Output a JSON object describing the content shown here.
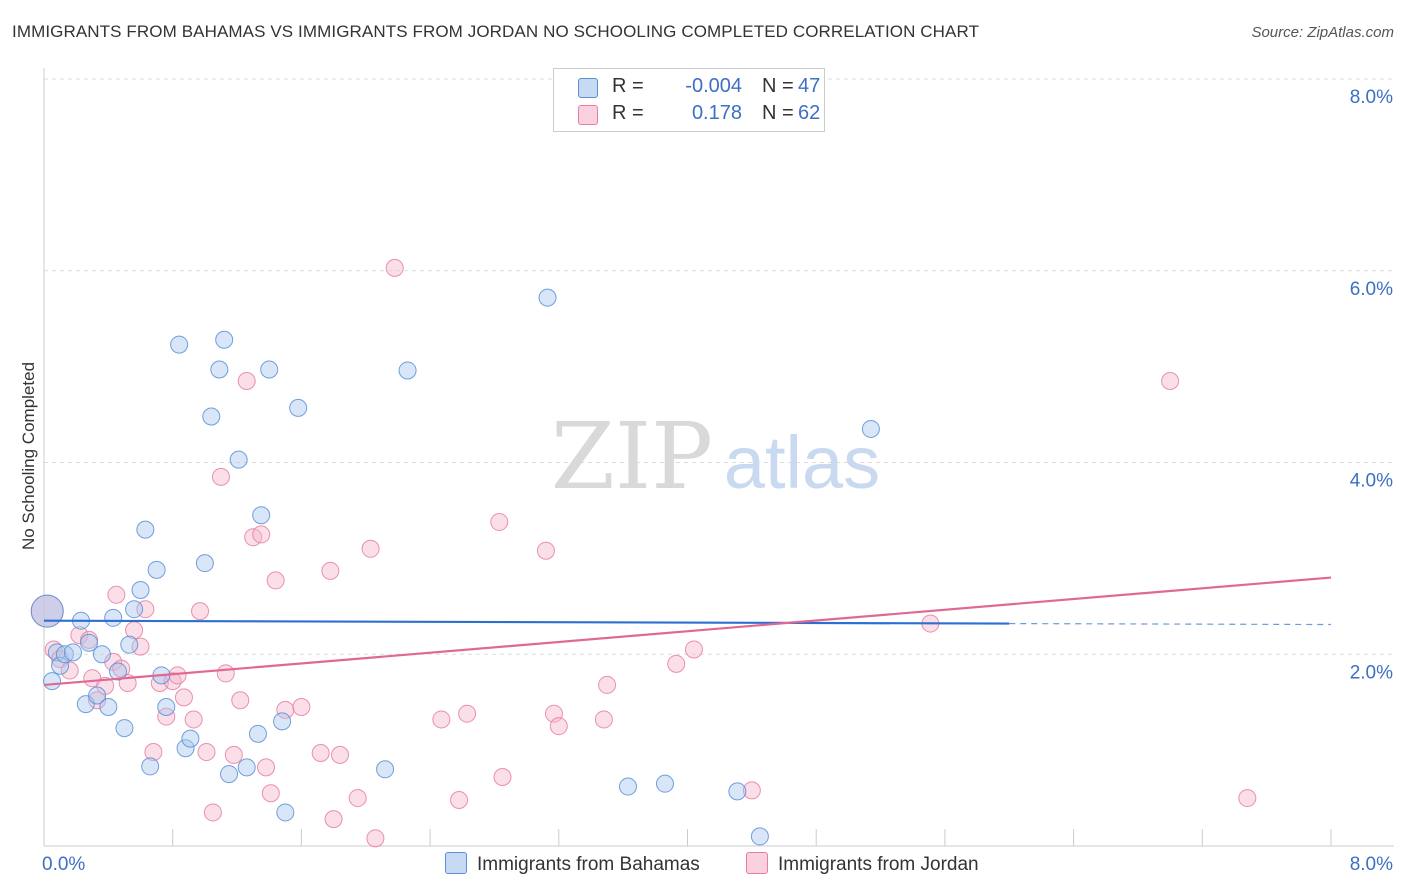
{
  "title": "IMMIGRANTS FROM BAHAMAS VS IMMIGRANTS FROM JORDAN NO SCHOOLING COMPLETED CORRELATION CHART",
  "source": "Source: ZipAtlas.com",
  "watermark": {
    "zip": "ZIP",
    "atlas": "atlas"
  },
  "legend": {
    "rows": [
      {
        "r_label": "R =",
        "r_value": "-0.004",
        "n_label": "N =",
        "n_value": "47"
      },
      {
        "r_label": "R =",
        "r_value": "0.178",
        "n_label": "N =",
        "n_value": "62"
      }
    ]
  },
  "chart_data": {
    "type": "scatter",
    "ylabel": "No Schooling Completed",
    "xlim": [
      0,
      8
    ],
    "ylim": [
      0,
      8
    ],
    "x_tick_labels": [
      "0.0%",
      "8.0%"
    ],
    "y_tick_labels": [
      "2.0%",
      "4.0%",
      "6.0%",
      "8.0%"
    ],
    "y_tick_values": [
      2,
      4,
      6,
      8
    ],
    "grid": true,
    "legend_position": "bottom-center",
    "colors": {
      "bahamas_fill": "#a9c7ee",
      "bahamas_stroke": "#5b8fd6",
      "bahamas_line": "#2c6fd1",
      "jordan_fill": "#f5b8cb",
      "jordan_stroke": "#e87ea1",
      "jordan_line": "#e06893"
    },
    "series": [
      {
        "name": "Immigrants from Bahamas",
        "trend": {
          "x1": 0.0,
          "y1": 2.35,
          "x2": 6.0,
          "y2": 2.32,
          "dash_to": 8.0
        },
        "points": [
          [
            0.02,
            2.45
          ],
          [
            0.05,
            1.72
          ],
          [
            0.08,
            2.02
          ],
          [
            0.1,
            1.88
          ],
          [
            0.13,
            2.0
          ],
          [
            0.18,
            2.02
          ],
          [
            0.23,
            2.35
          ],
          [
            0.26,
            1.48
          ],
          [
            0.28,
            2.12
          ],
          [
            0.33,
            1.57
          ],
          [
            0.36,
            2.0
          ],
          [
            0.4,
            1.45
          ],
          [
            0.43,
            2.38
          ],
          [
            0.46,
            1.82
          ],
          [
            0.5,
            1.23
          ],
          [
            0.53,
            2.1
          ],
          [
            0.56,
            2.47
          ],
          [
            0.6,
            2.67
          ],
          [
            0.63,
            3.3
          ],
          [
            0.66,
            0.83
          ],
          [
            0.7,
            2.88
          ],
          [
            0.73,
            1.78
          ],
          [
            0.76,
            1.45
          ],
          [
            0.84,
            5.23
          ],
          [
            0.88,
            1.02
          ],
          [
            0.91,
            1.12
          ],
          [
            1.0,
            2.95
          ],
          [
            1.04,
            4.48
          ],
          [
            1.09,
            4.97
          ],
          [
            1.12,
            5.28
          ],
          [
            1.15,
            0.75
          ],
          [
            1.21,
            4.03
          ],
          [
            1.26,
            0.82
          ],
          [
            1.33,
            1.17
          ],
          [
            1.35,
            3.45
          ],
          [
            1.4,
            4.97
          ],
          [
            1.48,
            1.3
          ],
          [
            1.5,
            0.35
          ],
          [
            1.58,
            4.57
          ],
          [
            2.12,
            0.8
          ],
          [
            2.26,
            4.96
          ],
          [
            3.13,
            5.72
          ],
          [
            3.63,
            0.62
          ],
          [
            3.86,
            0.65
          ],
          [
            4.31,
            0.57
          ],
          [
            4.45,
            0.1
          ],
          [
            5.14,
            4.35
          ]
        ]
      },
      {
        "name": "Immigrants from Jordan",
        "trend": {
          "x1": 0.0,
          "y1": 1.68,
          "x2": 8.0,
          "y2": 2.8
        },
        "points": [
          [
            0.02,
            2.45
          ],
          [
            0.06,
            2.05
          ],
          [
            0.1,
            1.95
          ],
          [
            0.16,
            1.83
          ],
          [
            0.22,
            2.2
          ],
          [
            0.28,
            2.15
          ],
          [
            0.3,
            1.75
          ],
          [
            0.33,
            1.52
          ],
          [
            0.38,
            1.67
          ],
          [
            0.43,
            1.92
          ],
          [
            0.45,
            2.62
          ],
          [
            0.48,
            1.85
          ],
          [
            0.52,
            1.7
          ],
          [
            0.56,
            2.25
          ],
          [
            0.6,
            2.08
          ],
          [
            0.63,
            2.47
          ],
          [
            0.68,
            0.98
          ],
          [
            0.72,
            1.7
          ],
          [
            0.76,
            1.35
          ],
          [
            0.8,
            1.72
          ],
          [
            0.83,
            1.78
          ],
          [
            0.87,
            1.55
          ],
          [
            0.93,
            1.32
          ],
          [
            0.97,
            2.45
          ],
          [
            1.01,
            0.98
          ],
          [
            1.05,
            0.35
          ],
          [
            1.1,
            3.85
          ],
          [
            1.13,
            1.8
          ],
          [
            1.18,
            0.95
          ],
          [
            1.22,
            1.52
          ],
          [
            1.26,
            4.85
          ],
          [
            1.3,
            3.22
          ],
          [
            1.35,
            3.25
          ],
          [
            1.38,
            0.82
          ],
          [
            1.41,
            0.55
          ],
          [
            1.44,
            2.77
          ],
          [
            1.5,
            1.42
          ],
          [
            1.6,
            1.45
          ],
          [
            1.72,
            0.97
          ],
          [
            1.78,
            2.87
          ],
          [
            1.8,
            0.28
          ],
          [
            1.84,
            0.95
          ],
          [
            1.95,
            0.5
          ],
          [
            2.03,
            3.1
          ],
          [
            2.06,
            0.08
          ],
          [
            2.18,
            6.03
          ],
          [
            2.47,
            1.32
          ],
          [
            2.58,
            0.48
          ],
          [
            2.63,
            1.38
          ],
          [
            2.83,
            3.38
          ],
          [
            2.85,
            0.72
          ],
          [
            3.12,
            3.08
          ],
          [
            3.17,
            1.38
          ],
          [
            3.2,
            1.25
          ],
          [
            3.48,
            1.32
          ],
          [
            3.5,
            1.68
          ],
          [
            3.93,
            1.9
          ],
          [
            4.04,
            2.05
          ],
          [
            4.4,
            0.58
          ],
          [
            5.51,
            2.32
          ],
          [
            7.0,
            4.85
          ],
          [
            7.48,
            0.5
          ]
        ]
      }
    ]
  }
}
